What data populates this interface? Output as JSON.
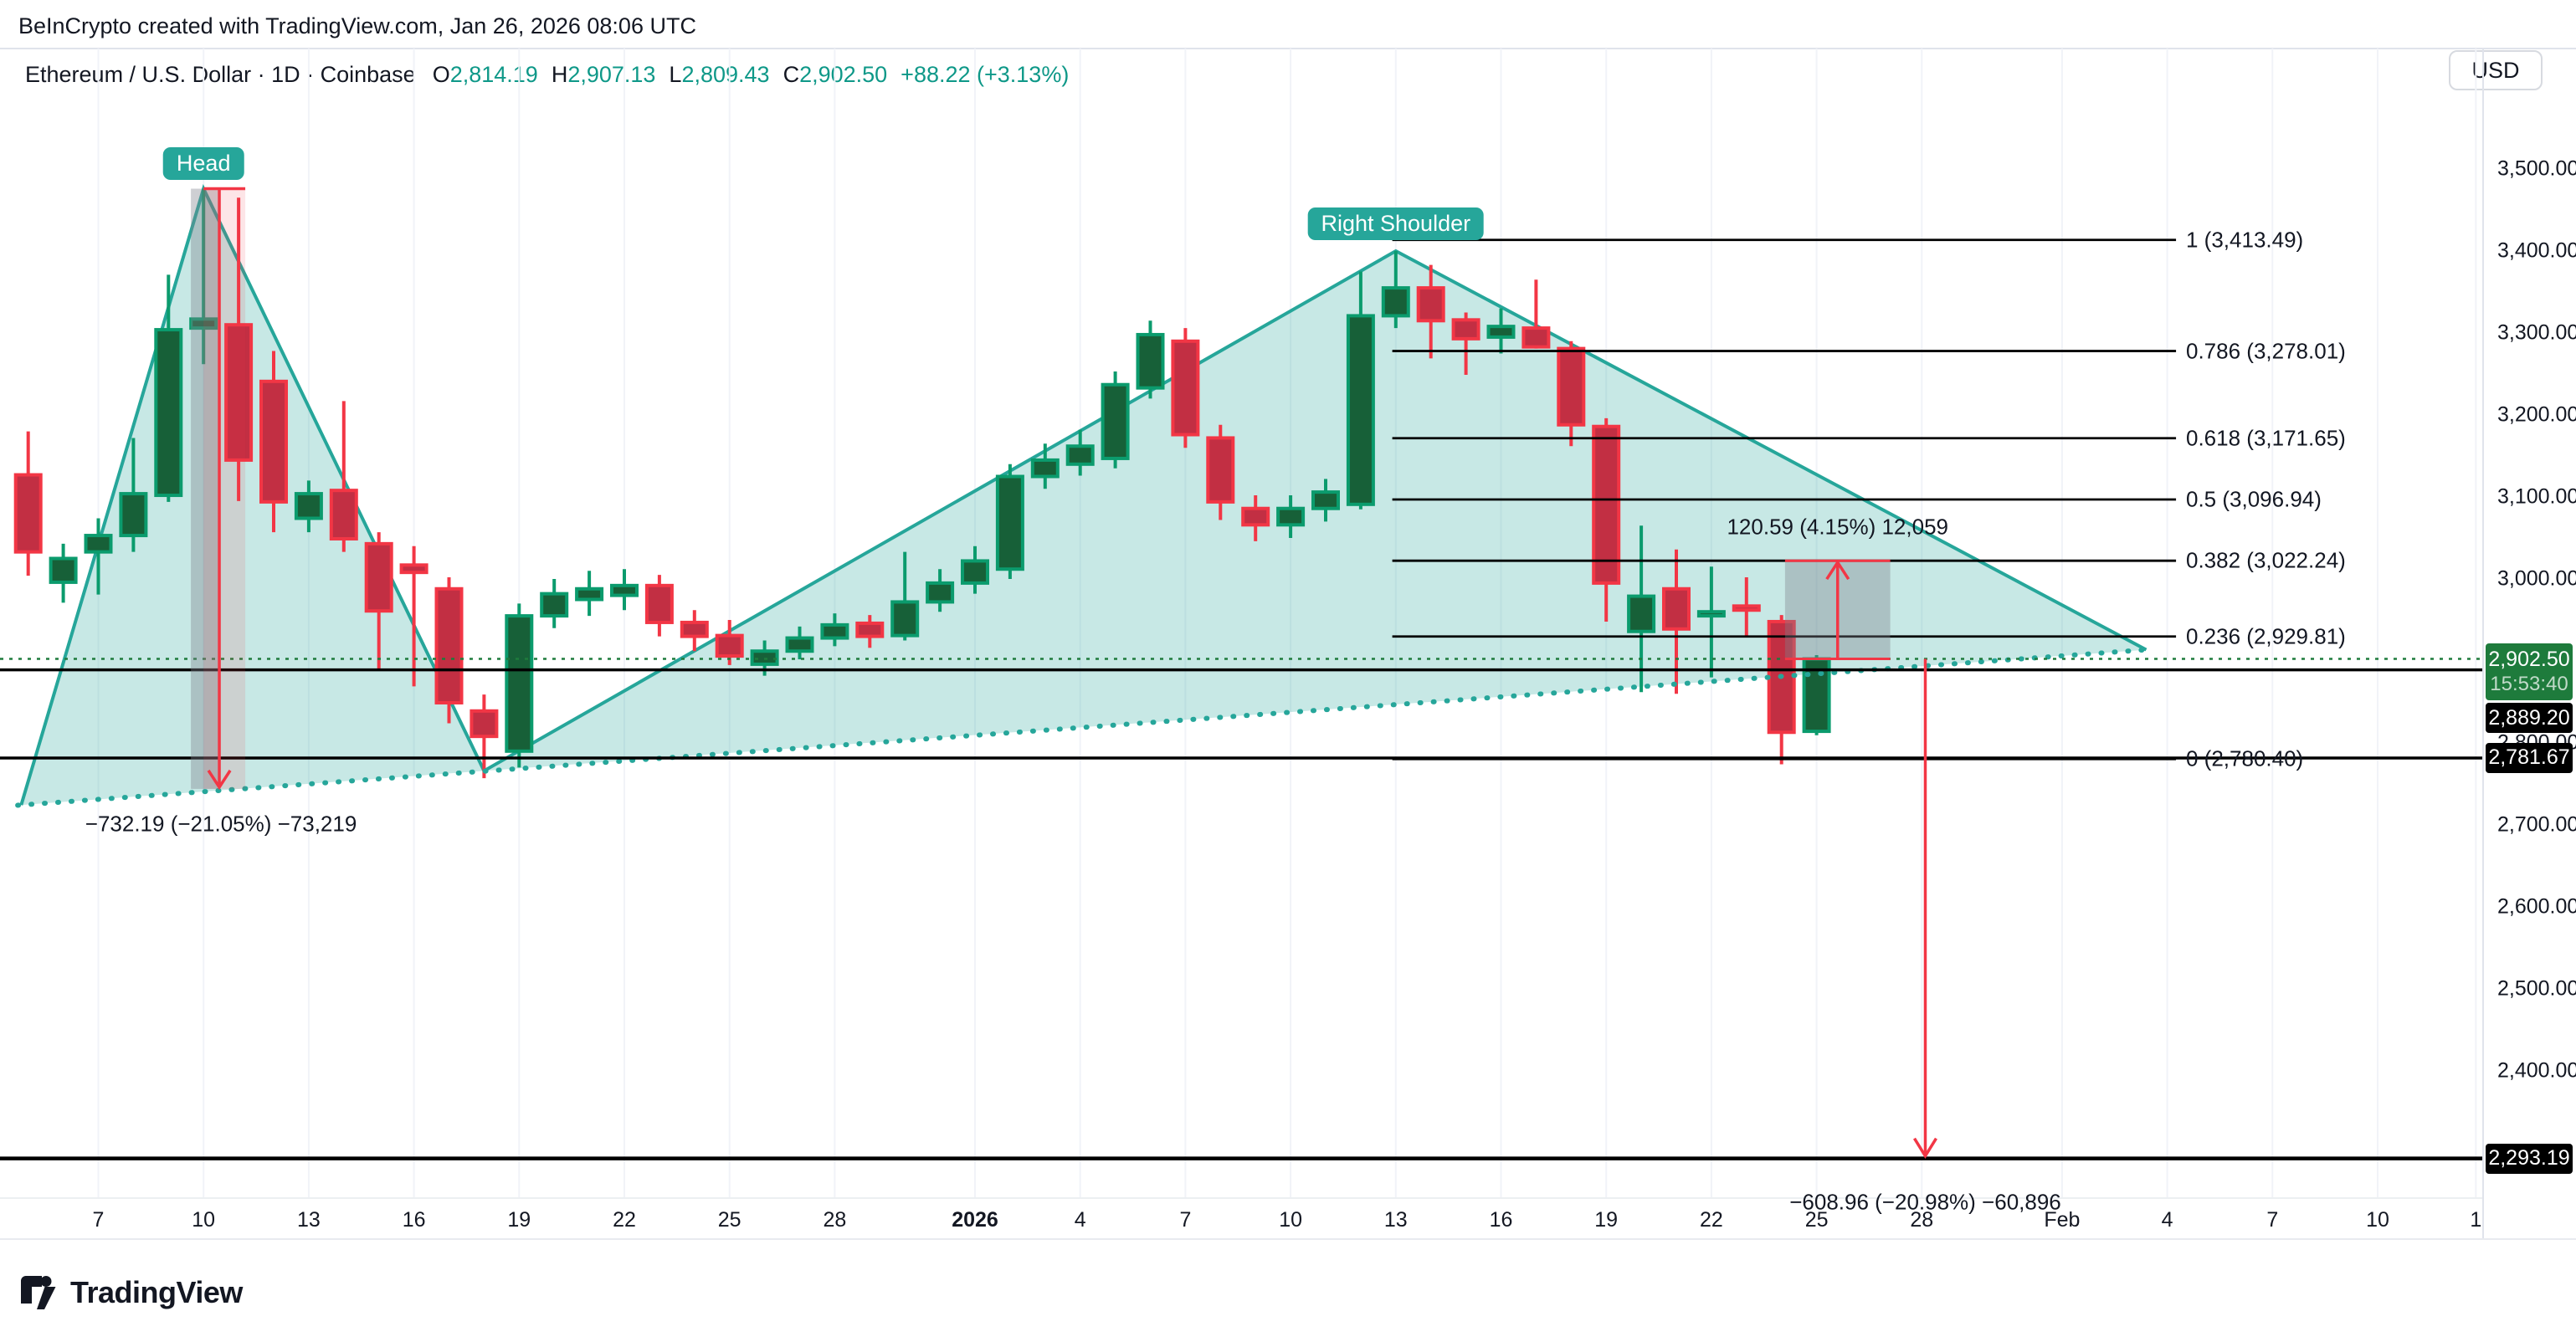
{
  "attribution": "BeInCrypto created with TradingView.com, Jan 26, 2026 08:06 UTC",
  "header": {
    "title": "Ethereum / U.S. Dollar · 1D · Coinbase",
    "ohlc": [
      {
        "k": "O",
        "v": "2,814.19"
      },
      {
        "k": "H",
        "v": "2,907.13"
      },
      {
        "k": "L",
        "v": "2,809.43"
      },
      {
        "k": "C",
        "v": "2,902.50"
      }
    ],
    "change": "+88.22 (+3.13%)"
  },
  "currency_button": "USD",
  "logo_text": "TradingView",
  "pattern_labels": {
    "head": "Head",
    "right_shoulder": "Right Shoulder"
  },
  "measurements": {
    "head_drop": "−732.19 (−21.05%) −73,219",
    "retrace_up": "120.59 (4.15%) 12,059",
    "projected_drop": "−608.96 (−20.98%) −60,896"
  },
  "price_labels": {
    "last_price": "2,902.50",
    "countdown": "15:53:40",
    "support_line": "2,889.20",
    "neck_line": "2,781.67",
    "target_line": "2,293.19"
  },
  "y_axis": [
    {
      "label": "3,500.00",
      "value": 3500
    },
    {
      "label": "3,400.00",
      "value": 3400
    },
    {
      "label": "3,300.00",
      "value": 3300
    },
    {
      "label": "3,200.00",
      "value": 3200
    },
    {
      "label": "3,100.00",
      "value": 3100
    },
    {
      "label": "3,000.00",
      "value": 3000
    },
    {
      "label": "2,800.00",
      "value": 2800
    },
    {
      "label": "2,700.00",
      "value": 2700
    },
    {
      "label": "2,600.00",
      "value": 2600
    },
    {
      "label": "2,500.00",
      "value": 2500
    },
    {
      "label": "2,400.00",
      "value": 2400
    }
  ],
  "x_axis": [
    {
      "label": "7",
      "d": -25
    },
    {
      "label": "10",
      "d": -22
    },
    {
      "label": "13",
      "d": -19
    },
    {
      "label": "16",
      "d": -16
    },
    {
      "label": "19",
      "d": -13
    },
    {
      "label": "22",
      "d": -10
    },
    {
      "label": "25",
      "d": -7
    },
    {
      "label": "28",
      "d": -4
    },
    {
      "label": "2026",
      "d": 0,
      "bold": true
    },
    {
      "label": "4",
      "d": 3
    },
    {
      "label": "7",
      "d": 6
    },
    {
      "label": "10",
      "d": 9
    },
    {
      "label": "13",
      "d": 12
    },
    {
      "label": "16",
      "d": 15
    },
    {
      "label": "19",
      "d": 18
    },
    {
      "label": "22",
      "d": 21
    },
    {
      "label": "25",
      "d": 24
    },
    {
      "label": "28",
      "d": 27
    },
    {
      "label": "Feb",
      "d": 31
    },
    {
      "label": "4",
      "d": 34
    },
    {
      "label": "7",
      "d": 37
    },
    {
      "label": "10",
      "d": 40
    },
    {
      "label": "1",
      "d": 42.8
    }
  ],
  "fib_levels": [
    {
      "text": "1 (3,413.49)",
      "price": 3413.49
    },
    {
      "text": "0.786 (3,278.01)",
      "price": 3278.01
    },
    {
      "text": "0.618 (3,171.65)",
      "price": 3171.65
    },
    {
      "text": "0.5 (3,096.94)",
      "price": 3096.94
    },
    {
      "text": "0.382 (3,022.24)",
      "price": 3022.24
    },
    {
      "text": "0.236 (2,929.81)",
      "price": 2929.81
    },
    {
      "text": "0 (2,780.40)",
      "price": 2780.4
    }
  ],
  "chart_data": {
    "type": "candlestick",
    "symbol": "ETHUSD",
    "interval": "1D",
    "exchange": "Coinbase",
    "ylim": [
      2250,
      3550
    ],
    "last_price": 2902.5,
    "grid": "vertical-only",
    "candles_dohlc": [
      [
        -27,
        3127,
        3180,
        3004,
        3033
      ],
      [
        -26,
        2996,
        3043,
        2971,
        3025
      ],
      [
        -25,
        3033,
        3074,
        2981,
        3053
      ],
      [
        -24,
        3053,
        3172,
        3033,
        3104
      ],
      [
        -23,
        3102,
        3371,
        3094,
        3304
      ],
      [
        -22,
        3306,
        3476,
        3262,
        3317
      ],
      [
        -21,
        3310,
        3465,
        3095,
        3145
      ],
      [
        -20,
        3241,
        3278,
        3057,
        3094
      ],
      [
        -19,
        3074,
        3120,
        3057,
        3104
      ],
      [
        -18,
        3108,
        3217,
        3033,
        3049
      ],
      [
        -17,
        3043,
        3057,
        2890,
        2961
      ],
      [
        -16,
        3017,
        3040,
        2869,
        3008
      ],
      [
        -15,
        2988,
        3002,
        2824,
        2849
      ],
      [
        -14,
        2839,
        2859,
        2757,
        2808
      ],
      [
        -13,
        2790,
        2970,
        2770,
        2955
      ],
      [
        -12,
        2955,
        3000,
        2940,
        2982
      ],
      [
        -11,
        2975,
        3010,
        2955,
        2988
      ],
      [
        -10,
        2980,
        3012,
        2962,
        2992
      ],
      [
        -9,
        2992,
        3005,
        2930,
        2947
      ],
      [
        -8,
        2947,
        2962,
        2912,
        2930
      ],
      [
        -7,
        2931,
        2950,
        2895,
        2906
      ],
      [
        -6,
        2896,
        2925,
        2882,
        2912
      ],
      [
        -5,
        2912,
        2942,
        2902,
        2928
      ],
      [
        -4,
        2928,
        2958,
        2918,
        2944
      ],
      [
        -3,
        2946,
        2956,
        2916,
        2930
      ],
      [
        -2,
        2931,
        3033,
        2925,
        2972
      ],
      [
        -1,
        2972,
        3012,
        2960,
        2995
      ],
      [
        0,
        2995,
        3040,
        2982,
        3022
      ],
      [
        1,
        3012,
        3140,
        3000,
        3125
      ],
      [
        2,
        3125,
        3165,
        3110,
        3145
      ],
      [
        3,
        3140,
        3182,
        3126,
        3162
      ],
      [
        4,
        3147,
        3253,
        3135,
        3237
      ],
      [
        5,
        3233,
        3315,
        3220,
        3298
      ],
      [
        6,
        3290,
        3306,
        3160,
        3176
      ],
      [
        7,
        3172,
        3188,
        3072,
        3094
      ],
      [
        8,
        3086,
        3102,
        3046,
        3066
      ],
      [
        9,
        3066,
        3102,
        3050,
        3086
      ],
      [
        10,
        3086,
        3122,
        3070,
        3106
      ],
      [
        11,
        3091,
        3375,
        3085,
        3321
      ],
      [
        12,
        3321,
        3400,
        3306,
        3355
      ],
      [
        13,
        3355,
        3383,
        3269,
        3315
      ],
      [
        14,
        3316,
        3325,
        3249,
        3293
      ],
      [
        15,
        3295,
        3330,
        3275,
        3308
      ],
      [
        16,
        3306,
        3365,
        3281,
        3283
      ],
      [
        17,
        3281,
        3290,
        3162,
        3188
      ],
      [
        18,
        3186,
        3196,
        2948,
        2995
      ],
      [
        19,
        2936,
        3065,
        2862,
        2979
      ],
      [
        20,
        2988,
        3036,
        2860,
        2939
      ],
      [
        21,
        2955,
        3015,
        2880,
        2960
      ],
      [
        22,
        2967,
        3002,
        2930,
        2962
      ],
      [
        23,
        2948,
        2956,
        2774,
        2813
      ],
      [
        24,
        2814.19,
        2907.13,
        2809.43,
        2902.5
      ]
    ],
    "pattern": {
      "head_apex": {
        "d": -22,
        "price": 3476
      },
      "shoulder_apex": {
        "d": 12,
        "price": 3400
      },
      "trough": {
        "d": -14,
        "price": 2766
      },
      "neckline": {
        "d1": -27.3,
        "p1": 2724,
        "d2": 33.5,
        "p2": 2914
      }
    },
    "fib_x_range": {
      "d1": 11.9,
      "d2": 34.25
    },
    "horizontal_rays": [
      {
        "price": 2889.2,
        "width": 3.5
      },
      {
        "price": 2781.67,
        "width": 3.5
      },
      {
        "price": 2293.19,
        "width": 4.5
      }
    ],
    "overlays": {
      "head_measure": {
        "line_d": -21.55,
        "from_price": 3476,
        "to_price": 2744,
        "pink_band": {
          "d1": -22.0,
          "d2": -20.81
        },
        "gray_band": {
          "d1": -22.36,
          "d2": -21.53
        }
      },
      "retrace_box": {
        "d1": 23.1,
        "d2": 26.1,
        "p_bottom": 2902.5,
        "p_top": 3022.24,
        "arrow_d": 24.6
      },
      "target_arrow": {
        "d": 27.1,
        "p_from": 2902.5,
        "p_to": 2293.19
      }
    },
    "colors": {
      "up_body": "#176038",
      "up_border": "#0b9b6d",
      "up_wick": "#0b9b6d",
      "down_body": "#c22f43",
      "down_border": "#f23645",
      "down_wick": "#f23645",
      "pattern_stroke": "#26a69a",
      "pattern_fill": "rgba(38,166,154,0.26)",
      "level_line": "#000000",
      "last_price_line": "#1e7b3c",
      "measure_red": "#f23645",
      "pink_band": "rgba(242,54,69,0.13)",
      "gray_band": "rgba(125,130,140,0.38)",
      "grid": "#f1f3f8",
      "accent_teal": "#0e9888"
    }
  }
}
